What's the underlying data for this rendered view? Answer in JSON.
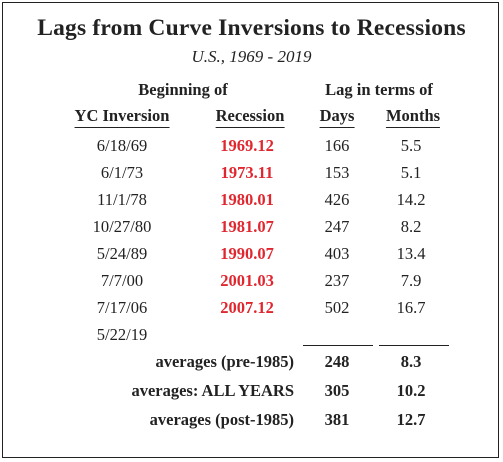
{
  "title": "Lags from Curve Inversions to Recessions",
  "subtitle": "U.S., 1969 - 2019",
  "headers": {
    "beginning_of": "Beginning of",
    "lag_in_terms_of": "Lag in terms of",
    "yc_inversion": "YC Inversion",
    "recession": "Recession",
    "days": "Days",
    "months": "Months"
  },
  "rows": [
    {
      "inversion": "6/18/69",
      "recession": "1969.12",
      "days": "166",
      "months": "5.5"
    },
    {
      "inversion": "6/1/73",
      "recession": "1973.11",
      "days": "153",
      "months": "5.1"
    },
    {
      "inversion": "11/1/78",
      "recession": "1980.01",
      "days": "426",
      "months": "14.2"
    },
    {
      "inversion": "10/27/80",
      "recession": "1981.07",
      "days": "247",
      "months": "8.2"
    },
    {
      "inversion": "5/24/89",
      "recession": "1990.07",
      "days": "403",
      "months": "13.4"
    },
    {
      "inversion": "7/7/00",
      "recession": "2001.03",
      "days": "237",
      "months": "7.9"
    },
    {
      "inversion": "7/17/06",
      "recession": "2007.12",
      "days": "502",
      "months": "16.7"
    },
    {
      "inversion": "5/22/19",
      "recession": "",
      "days": "",
      "months": ""
    }
  ],
  "averages": [
    {
      "label": "averages (pre-1985)",
      "days": "248",
      "months": "8.3"
    },
    {
      "label": "averages: ALL YEARS",
      "days": "305",
      "months": "10.2"
    },
    {
      "label": "averages (post-1985)",
      "days": "381",
      "months": "12.7"
    }
  ],
  "colors": {
    "recession_date": "#e0262e",
    "text": "#222222",
    "border": "#222222"
  }
}
